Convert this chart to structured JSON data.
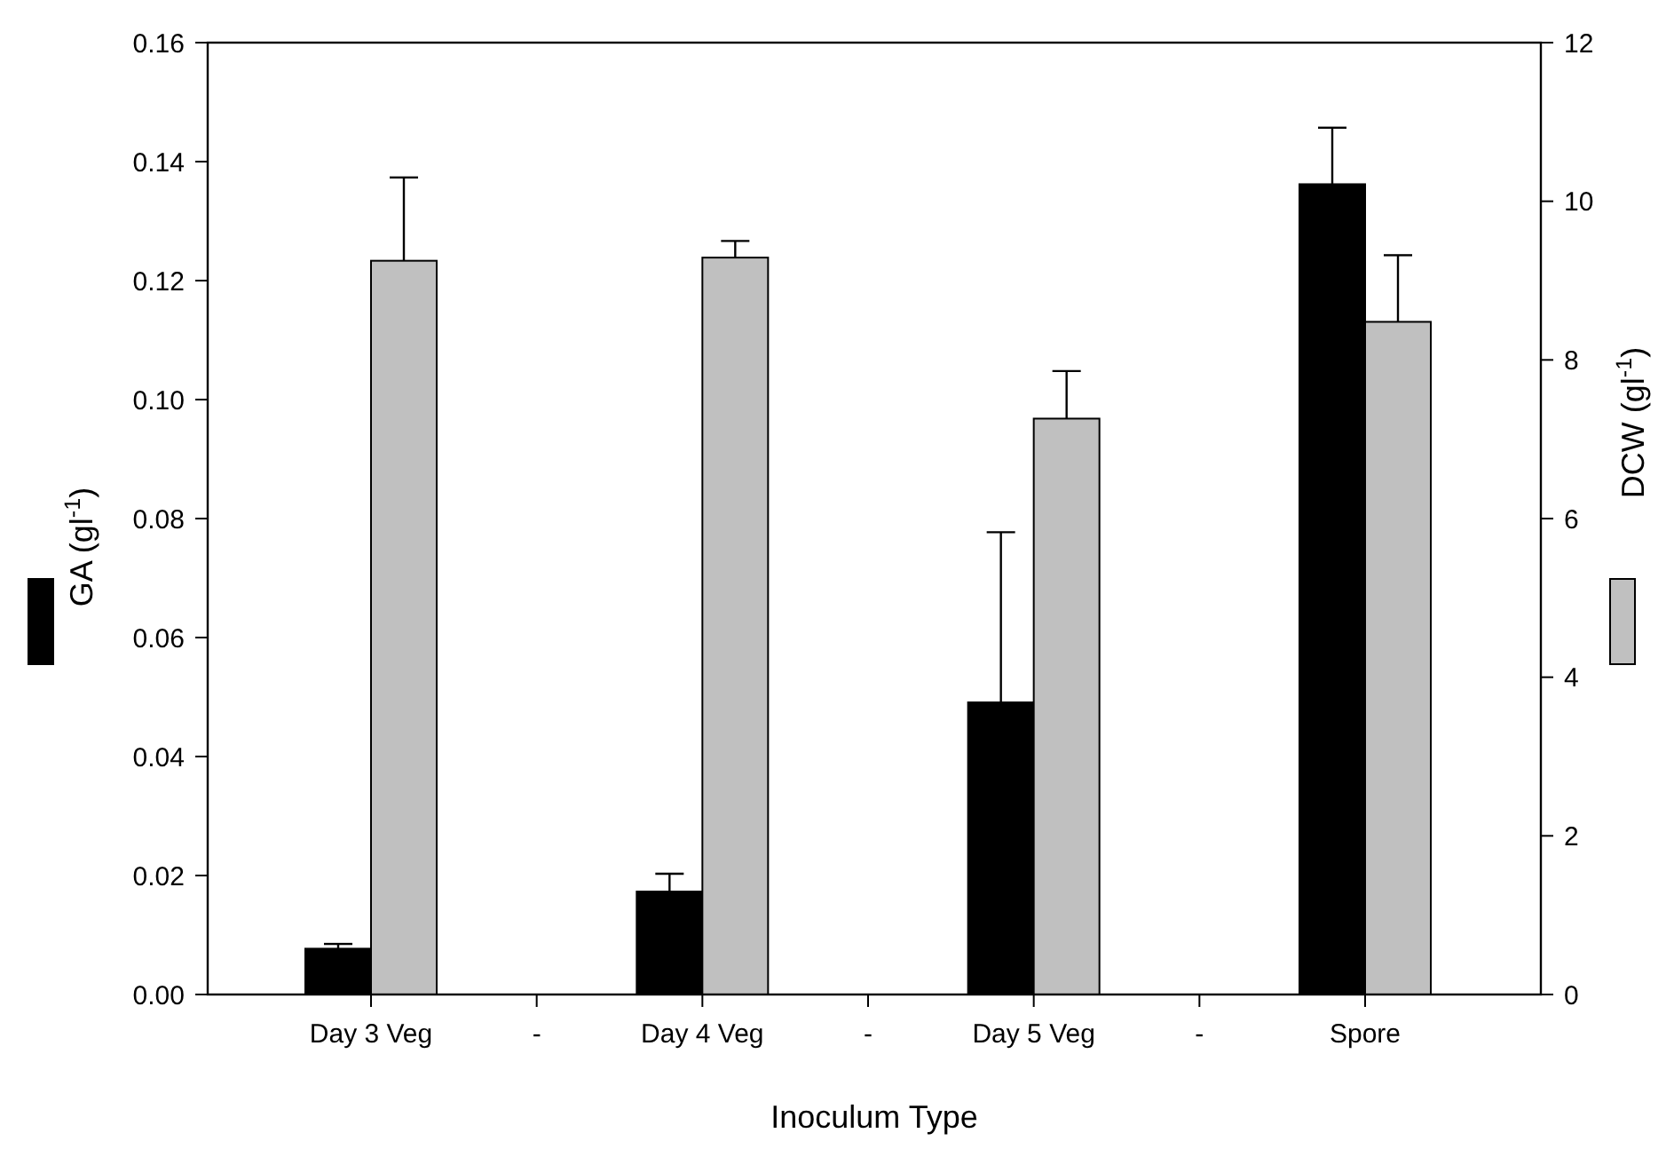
{
  "chart_data": {
    "type": "bar",
    "xlabel": "Inoculum Type",
    "ylabel": "GA (gl$^{-1}$)",
    "y2label": "DCW (gl$^{-1}$)",
    "categories": [
      "Day 3 Veg",
      "-",
      "Day 4 Veg",
      "-",
      "Day 5 Veg",
      "-",
      "Spore"
    ],
    "series": [
      {
        "color": "#000000",
        "values": [
          0.0077,
          null,
          0.0173,
          null,
          0.0491,
          null,
          0.1362
        ],
        "errors": [
          [
            0.0077,
            0.0085
          ],
          null,
          [
            0.0173,
            0.0203
          ],
          null,
          [
            0.0491,
            0.0777
          ],
          null,
          [
            0.1362,
            0.1457
          ]
        ]
      },
      {
        "color": "#c0c0c0",
        "axis": "y2",
        "values": [
          9.25,
          null,
          9.29,
          null,
          7.26,
          null,
          8.48
        ],
        "errors": [
          [
            9.25,
            10.3
          ],
          null,
          [
            9.29,
            9.5
          ],
          null,
          [
            7.26,
            7.86
          ],
          null,
          [
            8.48,
            9.32
          ]
        ]
      }
    ],
    "ylim": [
      0,
      0.16
    ],
    "yticks": [
      {
        "value": 0,
        "label": "0.00"
      },
      {
        "value": 0.02,
        "label": "0.02"
      },
      {
        "value": 0.04,
        "label": "0.04"
      },
      {
        "value": 0.06,
        "label": "0.06"
      },
      {
        "value": 0.08,
        "label": "0.08"
      },
      {
        "value": 0.1,
        "label": "0.10"
      },
      {
        "value": 0.12,
        "label": "0.12"
      },
      {
        "value": 0.14,
        "label": "0.14"
      },
      {
        "value": 0.16,
        "label": "0.16"
      }
    ],
    "y2lim": [
      0,
      12
    ],
    "y2ticks": [
      0,
      2,
      4,
      6,
      8,
      10,
      12
    ],
    "grid": false
  }
}
